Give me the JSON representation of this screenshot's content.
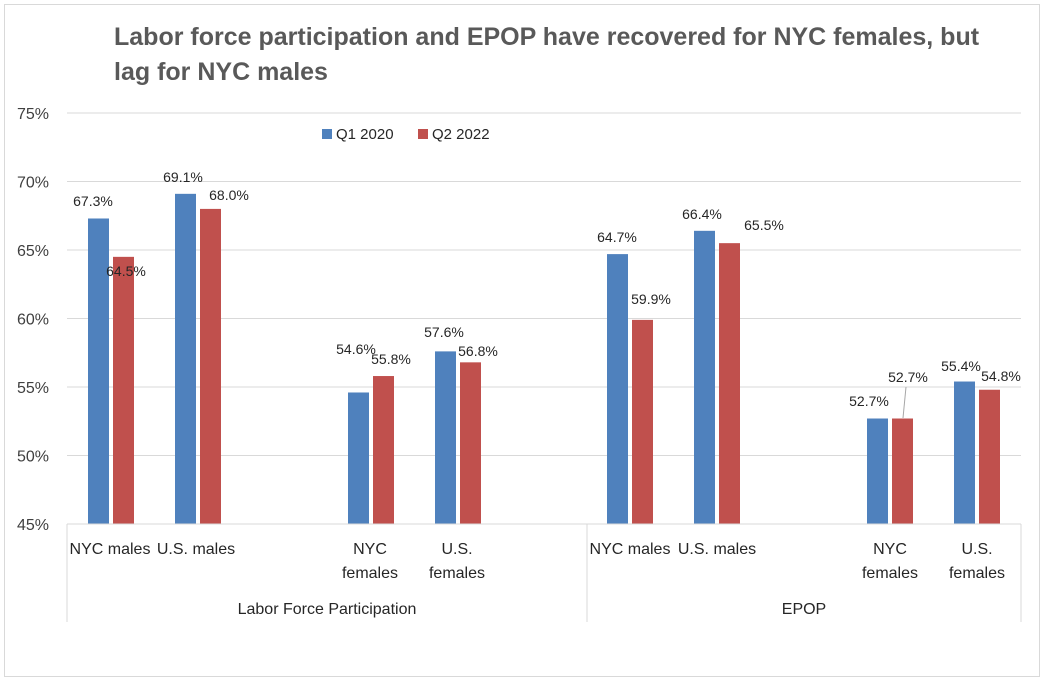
{
  "chart_data": {
    "type": "bar",
    "title": "Labor force participation and EPOP have recovered for NYC females, but lag for NYC males",
    "ylim": [
      45,
      75
    ],
    "ytick_labels": [
      "45%",
      "50%",
      "55%",
      "60%",
      "65%",
      "70%",
      "75%"
    ],
    "grid": true,
    "legend_position": "top-left",
    "groups": [
      {
        "label": "Labor Force Participation",
        "categories": [
          [
            "NYC males"
          ],
          [
            "U.S. males"
          ],
          [
            "NYC",
            "females"
          ],
          [
            "U.S.",
            "females"
          ]
        ]
      },
      {
        "label": "EPOP",
        "categories": [
          [
            "NYC males"
          ],
          [
            "U.S. males"
          ],
          [
            "NYC",
            "females"
          ],
          [
            "U.S.",
            "females"
          ]
        ]
      }
    ],
    "series": [
      {
        "name": "Q1 2020",
        "color": "#4F81BD",
        "values": [
          67.3,
          69.1,
          54.6,
          57.6,
          64.7,
          66.4,
          52.7,
          55.4
        ],
        "labels": [
          "67.3%",
          "69.1%",
          "54.6%",
          "57.6%",
          "64.7%",
          "66.4%",
          "52.7%",
          "55.4%"
        ]
      },
      {
        "name": "Q2 2022",
        "color": "#C0504D",
        "values": [
          64.5,
          68.0,
          55.8,
          56.8,
          59.9,
          65.5,
          52.7,
          54.8
        ],
        "labels": [
          "64.5%",
          "68.0%",
          "55.8%",
          "56.8%",
          "59.9%",
          "65.5%",
          "52.7%",
          "54.8%"
        ]
      }
    ]
  }
}
